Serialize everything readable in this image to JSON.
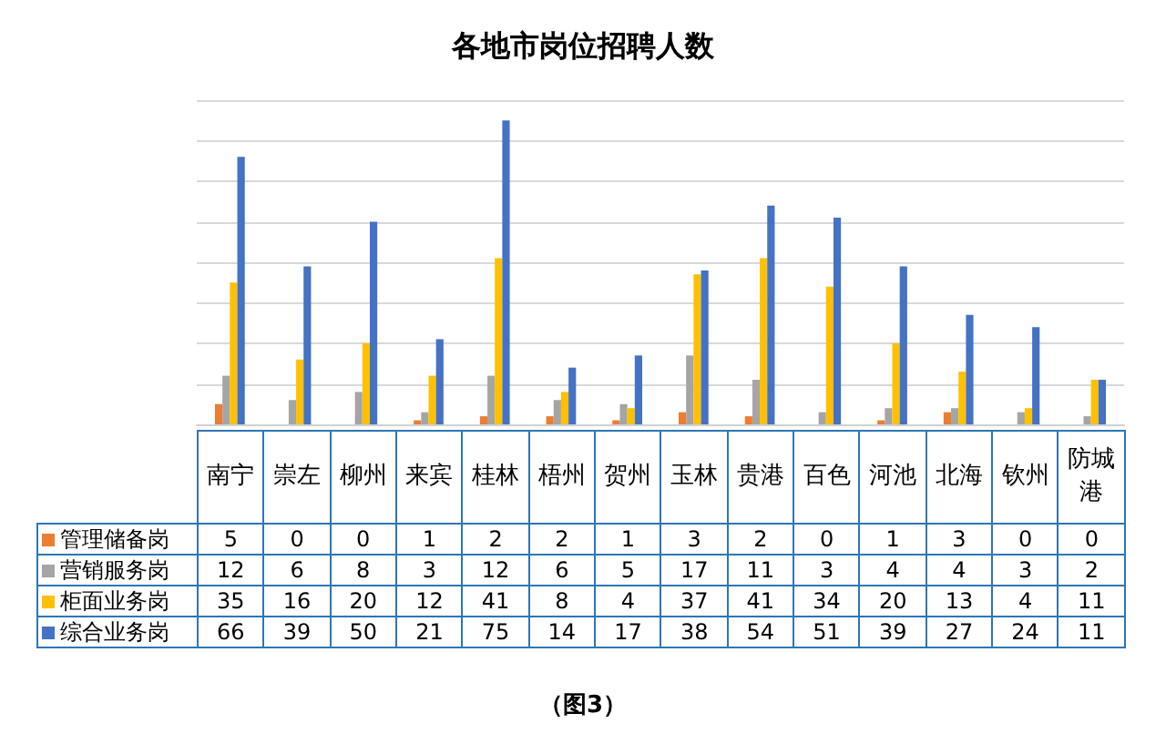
{
  "chart_data": {
    "type": "bar",
    "title": "各地市岗位招聘人数",
    "categories": [
      "南宁",
      "崇左",
      "柳州",
      "来宾",
      "桂林",
      "梧州",
      "贺州",
      "玉林",
      "贵港",
      "百色",
      "河池",
      "北海",
      "钦州",
      "防城港"
    ],
    "series": [
      {
        "name": "管理储备岗",
        "color": "#ed7d31",
        "values": [
          5,
          0,
          0,
          1,
          2,
          2,
          1,
          3,
          2,
          0,
          1,
          3,
          0,
          0
        ]
      },
      {
        "name": "营销服务岗",
        "color": "#a5a5a5",
        "values": [
          12,
          6,
          8,
          3,
          12,
          6,
          5,
          17,
          11,
          3,
          4,
          4,
          3,
          2
        ]
      },
      {
        "name": "柜面业务岗",
        "color": "#ffc000",
        "values": [
          35,
          16,
          20,
          12,
          41,
          8,
          4,
          37,
          41,
          34,
          20,
          13,
          4,
          11
        ]
      },
      {
        "name": "综合业务岗",
        "color": "#4472c4",
        "values": [
          66,
          39,
          50,
          21,
          75,
          14,
          17,
          38,
          54,
          51,
          39,
          27,
          24,
          11
        ]
      }
    ],
    "ylim": [
      0,
      80
    ],
    "yticks": [
      {
        "value": 0,
        "label": null
      },
      {
        "value": 10,
        "label": null
      },
      {
        "value": 20,
        "label": null
      },
      {
        "value": 30,
        "label": null
      },
      {
        "value": 40,
        "label": null
      },
      {
        "value": 50,
        "label": null
      },
      {
        "value": 60,
        "label": null
      },
      {
        "value": 70,
        "label": null
      },
      {
        "value": 80,
        "label": null
      }
    ],
    "grid": "y",
    "legend": "bottom",
    "data_labels": true,
    "annotations": [
      "（图3）"
    ]
  }
}
